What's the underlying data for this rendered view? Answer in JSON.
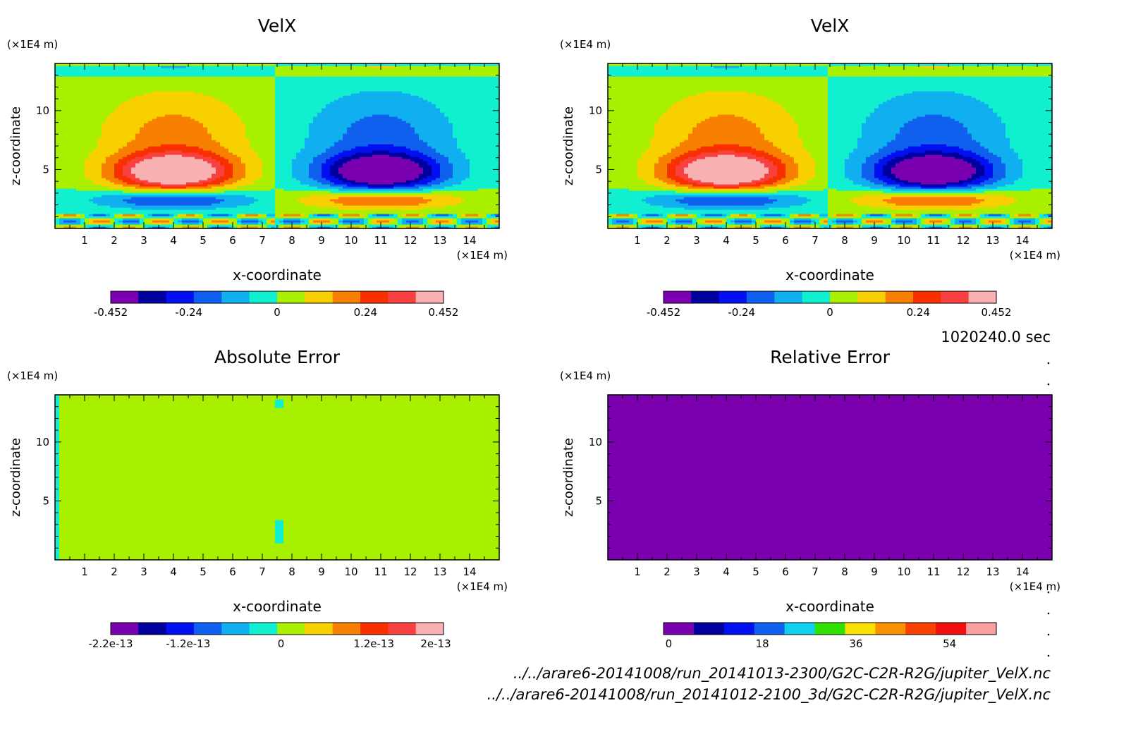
{
  "figure": {
    "time_label": "1020240.0 sec",
    "file_lines": [
      "../../arare6-20141008/run_20141013-2300/G2C-C2R-R2G/jupiter_VelX.nc",
      "../../arare6-20141008/run_20141012-2100_3d/G2C-C2R-R2G/jupiter_VelX.nc"
    ]
  },
  "chart_data": [
    {
      "type": "heatmap",
      "title": "VelX",
      "xlabel": "x-coordinate",
      "ylabel": "z-coordinate",
      "x_unit": "(×1E4 m)",
      "y_unit": "(×1E4 m)",
      "xlim": [
        0,
        15
      ],
      "ylim": [
        0,
        14
      ],
      "x_ticks": [
        1,
        2,
        3,
        4,
        5,
        6,
        7,
        8,
        9,
        10,
        11,
        12,
        13,
        14
      ],
      "y_ticks": [
        5,
        10
      ],
      "field": "velx",
      "colorbar": {
        "colors": [
          "#7a00b0",
          "#0000a0",
          "#0010f0",
          "#1060f0",
          "#10b0f0",
          "#10f0d0",
          "#a8f000",
          "#f8d000",
          "#f88000",
          "#f83000",
          "#f84040",
          "#f8b0b0"
        ],
        "tick_labels": [
          "-0.452",
          "-0.24",
          "0",
          "0.24",
          "0.452"
        ],
        "tick_values": [
          -0.452,
          -0.24,
          0,
          0.24,
          0.452
        ],
        "range": [
          -0.452,
          0.452
        ]
      }
    },
    {
      "type": "heatmap",
      "title": "VelX",
      "xlabel": "x-coordinate",
      "ylabel": "z-coordinate",
      "x_unit": "(×1E4 m)",
      "y_unit": "(×1E4 m)",
      "xlim": [
        0,
        15
      ],
      "ylim": [
        0,
        14
      ],
      "x_ticks": [
        1,
        2,
        3,
        4,
        5,
        6,
        7,
        8,
        9,
        10,
        11,
        12,
        13,
        14
      ],
      "y_ticks": [
        5,
        10
      ],
      "field": "velx",
      "colorbar": {
        "colors": [
          "#7a00b0",
          "#0000a0",
          "#0010f0",
          "#1060f0",
          "#10b0f0",
          "#10f0d0",
          "#a8f000",
          "#f8d000",
          "#f88000",
          "#f83000",
          "#f84040",
          "#f8b0b0"
        ],
        "tick_labels": [
          "-0.452",
          "-0.24",
          "0",
          "0.24",
          "0.452"
        ],
        "tick_values": [
          -0.452,
          -0.24,
          0,
          0.24,
          0.452
        ],
        "range": [
          -0.452,
          0.452
        ]
      }
    },
    {
      "type": "heatmap",
      "title": "Absolute Error",
      "xlabel": "x-coordinate",
      "ylabel": "z-coordinate",
      "x_unit": "(×1E4 m)",
      "y_unit": "(×1E4 m)",
      "xlim": [
        0,
        15
      ],
      "ylim": [
        0,
        14
      ],
      "x_ticks": [
        1,
        2,
        3,
        4,
        5,
        6,
        7,
        8,
        9,
        10,
        11,
        12,
        13,
        14
      ],
      "y_ticks": [
        5,
        10
      ],
      "field": "abserr",
      "colorbar": {
        "colors": [
          "#7a00b0",
          "#0000a0",
          "#0010f0",
          "#1060f0",
          "#10b0f0",
          "#10f0d0",
          "#a8f000",
          "#f8d000",
          "#f88000",
          "#f83000",
          "#f84040",
          "#f8b0b0"
        ],
        "tick_labels": [
          "-2.2e-13",
          "-1.2e-13",
          "0",
          "1.2e-13",
          "2e-13"
        ],
        "tick_values": [
          -2.2e-13,
          -1.2e-13,
          0,
          1.2e-13,
          2e-13
        ],
        "range": [
          -2.2e-13,
          2.1e-13
        ]
      }
    },
    {
      "type": "heatmap",
      "title": "Relative Error",
      "xlabel": "x-coordinate",
      "ylabel": "z-coordinate",
      "x_unit": "(×1E4 m)",
      "y_unit": "(×1E4 m)",
      "xlim": [
        0,
        15
      ],
      "ylim": [
        0,
        14
      ],
      "x_ticks": [
        1,
        2,
        3,
        4,
        5,
        6,
        7,
        8,
        9,
        10,
        11,
        12,
        13,
        14
      ],
      "y_ticks": [
        5,
        10
      ],
      "field": "relerr",
      "colorbar": {
        "colors": [
          "#7a00b0",
          "#0000a0",
          "#0010f0",
          "#1060f0",
          "#10d0f0",
          "#30e000",
          "#f8e000",
          "#f89000",
          "#f84000",
          "#f01010",
          "#f8a0a0"
        ],
        "tick_labels": [
          "0",
          "18",
          "36",
          "54"
        ],
        "tick_values": [
          0,
          18,
          36,
          54
        ],
        "range": [
          -1,
          63
        ]
      }
    }
  ]
}
